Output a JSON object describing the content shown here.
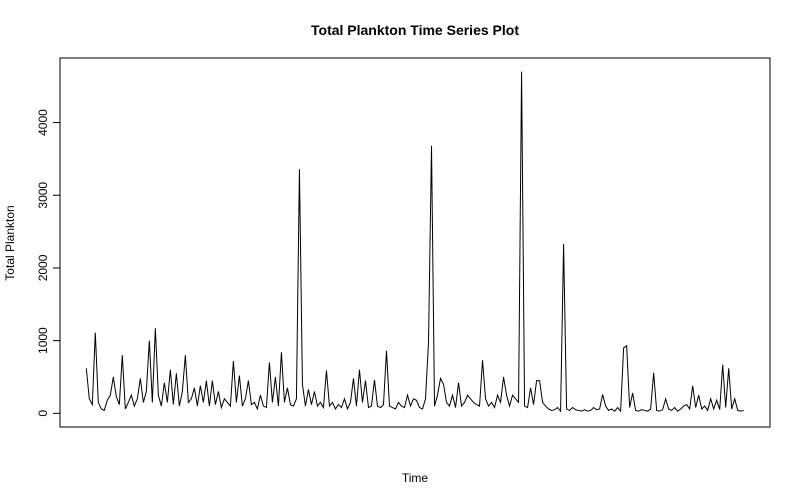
{
  "chart_data": {
    "type": "line",
    "title": "Total Plankton Time Series Plot",
    "xlabel": "Time",
    "ylabel": "Total Plankton",
    "color": "#000000",
    "ylim": [
      -188,
      4888
    ],
    "yticks": [
      0,
      1000,
      2000,
      3000,
      4000
    ],
    "values": [
      620,
      200,
      120,
      1110,
      150,
      60,
      40,
      180,
      250,
      500,
      230,
      120,
      800,
      60,
      150,
      250,
      100,
      200,
      480,
      150,
      300,
      1000,
      150,
      1170,
      250,
      100,
      420,
      150,
      600,
      120,
      550,
      100,
      300,
      800,
      150,
      200,
      350,
      100,
      380,
      150,
      450,
      100,
      450,
      120,
      300,
      80,
      200,
      150,
      100,
      720,
      150,
      520,
      100,
      200,
      450,
      120,
      150,
      60,
      250,
      100,
      80,
      700,
      150,
      500,
      100,
      840,
      150,
      350,
      120,
      100,
      200,
      3360,
      400,
      100,
      330,
      120,
      300,
      100,
      150,
      80,
      590,
      100,
      150,
      60,
      120,
      80,
      200,
      60,
      150,
      480,
      100,
      600,
      150,
      450,
      80,
      100,
      460,
      100,
      80,
      120,
      860,
      100,
      80,
      60,
      150,
      100,
      80,
      250,
      100,
      200,
      180,
      80,
      60,
      200,
      980,
      3680,
      100,
      250,
      480,
      400,
      150,
      100,
      250,
      80,
      420,
      100,
      150,
      250,
      200,
      150,
      120,
      100,
      730,
      200,
      100,
      150,
      80,
      250,
      150,
      500,
      250,
      100,
      250,
      200,
      150,
      4700,
      100,
      80,
      350,
      120,
      450,
      450,
      150,
      100,
      60,
      40,
      50,
      80,
      30,
      2330,
      60,
      40,
      80,
      50,
      40,
      30,
      50,
      30,
      40,
      80,
      50,
      60,
      260,
      100,
      40,
      60,
      30,
      80,
      30,
      900,
      930,
      80,
      280,
      40,
      30,
      50,
      40,
      30,
      60,
      560,
      40,
      30,
      50,
      200,
      60,
      40,
      80,
      30,
      60,
      100,
      120,
      60,
      380,
      80,
      250,
      60,
      100,
      40,
      200,
      60,
      180,
      50,
      670,
      80,
      620,
      60,
      200,
      40,
      30,
      40
    ]
  }
}
